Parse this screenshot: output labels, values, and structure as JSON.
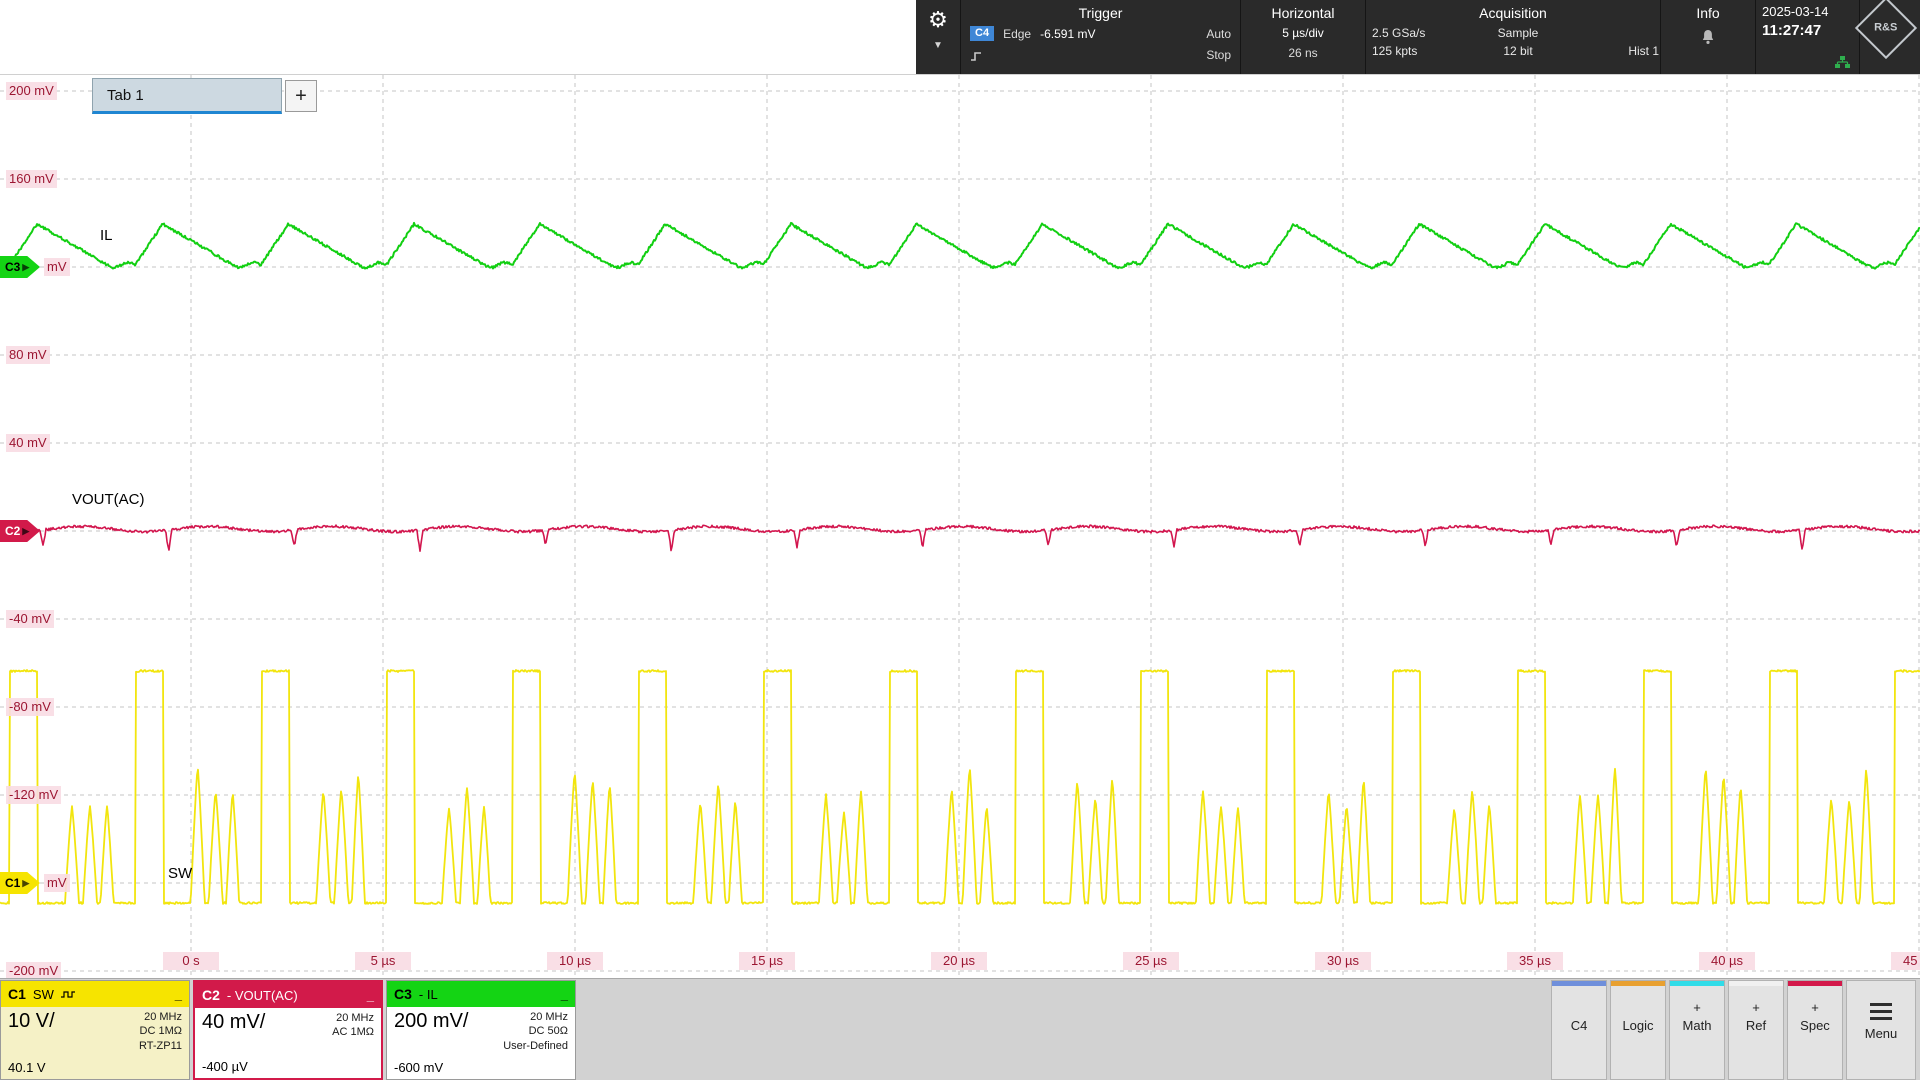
{
  "header": {
    "trigger": {
      "title": "Trigger",
      "source": "C4",
      "type": "Edge",
      "level": "-6.591 mV",
      "mode": "Auto",
      "state": "Stop"
    },
    "horizontal": {
      "title": "Horizontal",
      "scale": "5 µs/div",
      "resolution": "26 ns"
    },
    "acquisition": {
      "title": "Acquisition",
      "sample_rate": "2.5 GSa/s",
      "record_length": "125 kpts",
      "mode": "Sample",
      "adc_resolution": "12 bit",
      "history": "Hist 1"
    },
    "info": {
      "title": "Info"
    },
    "clock": {
      "date": "2025-03-14",
      "time": "11:27:47"
    },
    "logo_text": "R&S"
  },
  "tab_bar": {
    "active_tab": "Tab 1",
    "add_button": "+"
  },
  "plot": {
    "y_axis": [
      "200 mV",
      "160 mV",
      "mV",
      "80 mV",
      "40 mV",
      "",
      "-40 mV",
      "-80 mV",
      "-120 mV",
      "mV",
      "-200 mV"
    ],
    "x_axis": [
      "0 s",
      "5 µs",
      "10 µs",
      "15 µs",
      "20 µs",
      "25 µs",
      "30 µs",
      "35 µs",
      "40 µs",
      "45 µs"
    ],
    "badges": [
      {
        "id": "C3",
        "color": "#14d414",
        "text_color": "#000000",
        "row_mv": 120
      },
      {
        "id": "C2",
        "color": "#d21a4a",
        "text_color": "#ffffff",
        "row_mv": 0
      },
      {
        "id": "C1",
        "color": "#f6e400",
        "text_color": "#000000",
        "row_mv": -160
      }
    ],
    "wave_labels": {
      "il": "IL",
      "vout": "VOUT(AC)",
      "sw": "SW"
    }
  },
  "channels": [
    {
      "id": "C1",
      "name": "SW",
      "scale": "10 V/",
      "offset": "40.1 V",
      "details": [
        "20 MHz",
        "DC 1MΩ",
        "RT-ZP11"
      ],
      "color": "#f6e400",
      "body": "#f5f1c6",
      "minimize": "_"
    },
    {
      "id": "C2",
      "name": "- VOUT(AC)",
      "scale": "40 mV/",
      "offset": "-400 µV",
      "details": [
        "20 MHz",
        "AC 1MΩ"
      ],
      "color": "#d21a4a",
      "body": "#ffffff",
      "minimize": "_"
    },
    {
      "id": "C3",
      "name": "- IL",
      "scale": "200 mV/",
      "offset": "-600 mV",
      "details": [
        "20 MHz",
        "DC 50Ω",
        "User-Defined"
      ],
      "color": "#14d414",
      "body": "#ffffff",
      "minimize": "_"
    }
  ],
  "side_buttons": [
    {
      "label": "C4",
      "prefix": "",
      "accent": "#6f8fdb"
    },
    {
      "label": "Logic",
      "prefix": "",
      "accent": "#e8a030"
    },
    {
      "label": "Math",
      "prefix": "+",
      "accent": "#30dce8"
    },
    {
      "label": "Ref",
      "prefix": "+",
      "accent": "#f0f0f0"
    },
    {
      "label": "Spec",
      "prefix": "+",
      "accent": "#d3194a"
    },
    {
      "label": "Menu",
      "prefix": "",
      "accent": ""
    }
  ],
  "waveforms": {
    "c1_color": "#f2e50e",
    "c2_color": "#d2164e",
    "c3_color": "#12cf12"
  }
}
